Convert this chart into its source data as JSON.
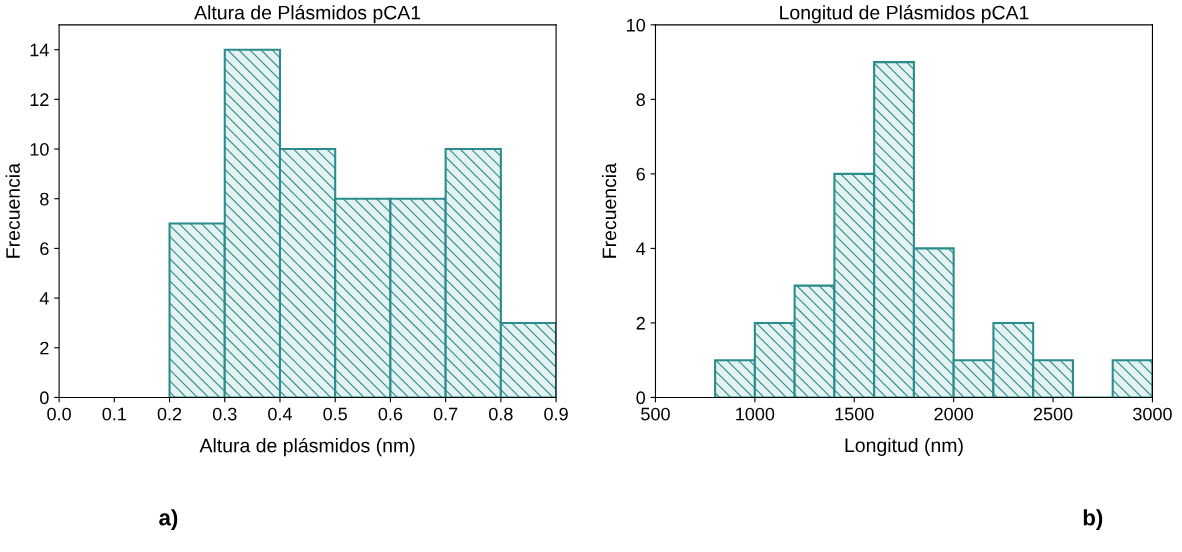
{
  "chart_data": [
    {
      "type": "histogram",
      "title": "Altura de Plásmidos pCA1",
      "xlabel": "Altura de plásmidos (nm)",
      "ylabel": "Frecuencia",
      "bins": [
        0.2,
        0.3,
        0.4,
        0.5,
        0.6,
        0.7,
        0.8,
        0.9
      ],
      "values": [
        7,
        14,
        10,
        8,
        8,
        10,
        3
      ],
      "color": "#2a8c8c",
      "xlim": [
        0.0,
        0.9
      ],
      "xticks": [
        {
          "value": 0.0,
          "label": "0.0"
        },
        0.1,
        0.2,
        0.3,
        0.4,
        0.5,
        0.6,
        0.7,
        0.8,
        0.9
      ],
      "ylim": [
        0,
        15
      ],
      "yticks": [
        0,
        2,
        4,
        6,
        8,
        10,
        12,
        14
      ],
      "grid": false,
      "annotations": [
        "a)"
      ]
    },
    {
      "type": "histogram",
      "title": "Longitud de Plásmidos pCA1",
      "xlabel": "Longitud (nm)",
      "ylabel": "Frecuencia",
      "bins": [
        800,
        1000,
        1200,
        1400,
        1600,
        1800,
        2000,
        2200,
        2400,
        2600,
        2800,
        3000
      ],
      "values": [
        1,
        2,
        3,
        6,
        9,
        4,
        1,
        2,
        1,
        0,
        1
      ],
      "color": "#2a8c8c",
      "xlim": [
        500,
        3000
      ],
      "xticks": [
        500,
        1000,
        1500,
        2000,
        2500,
        3000
      ],
      "ylim": [
        0,
        10
      ],
      "yticks": [
        0,
        2,
        4,
        6,
        8,
        10
      ],
      "grid": false,
      "annotations": [
        "b)"
      ]
    }
  ]
}
